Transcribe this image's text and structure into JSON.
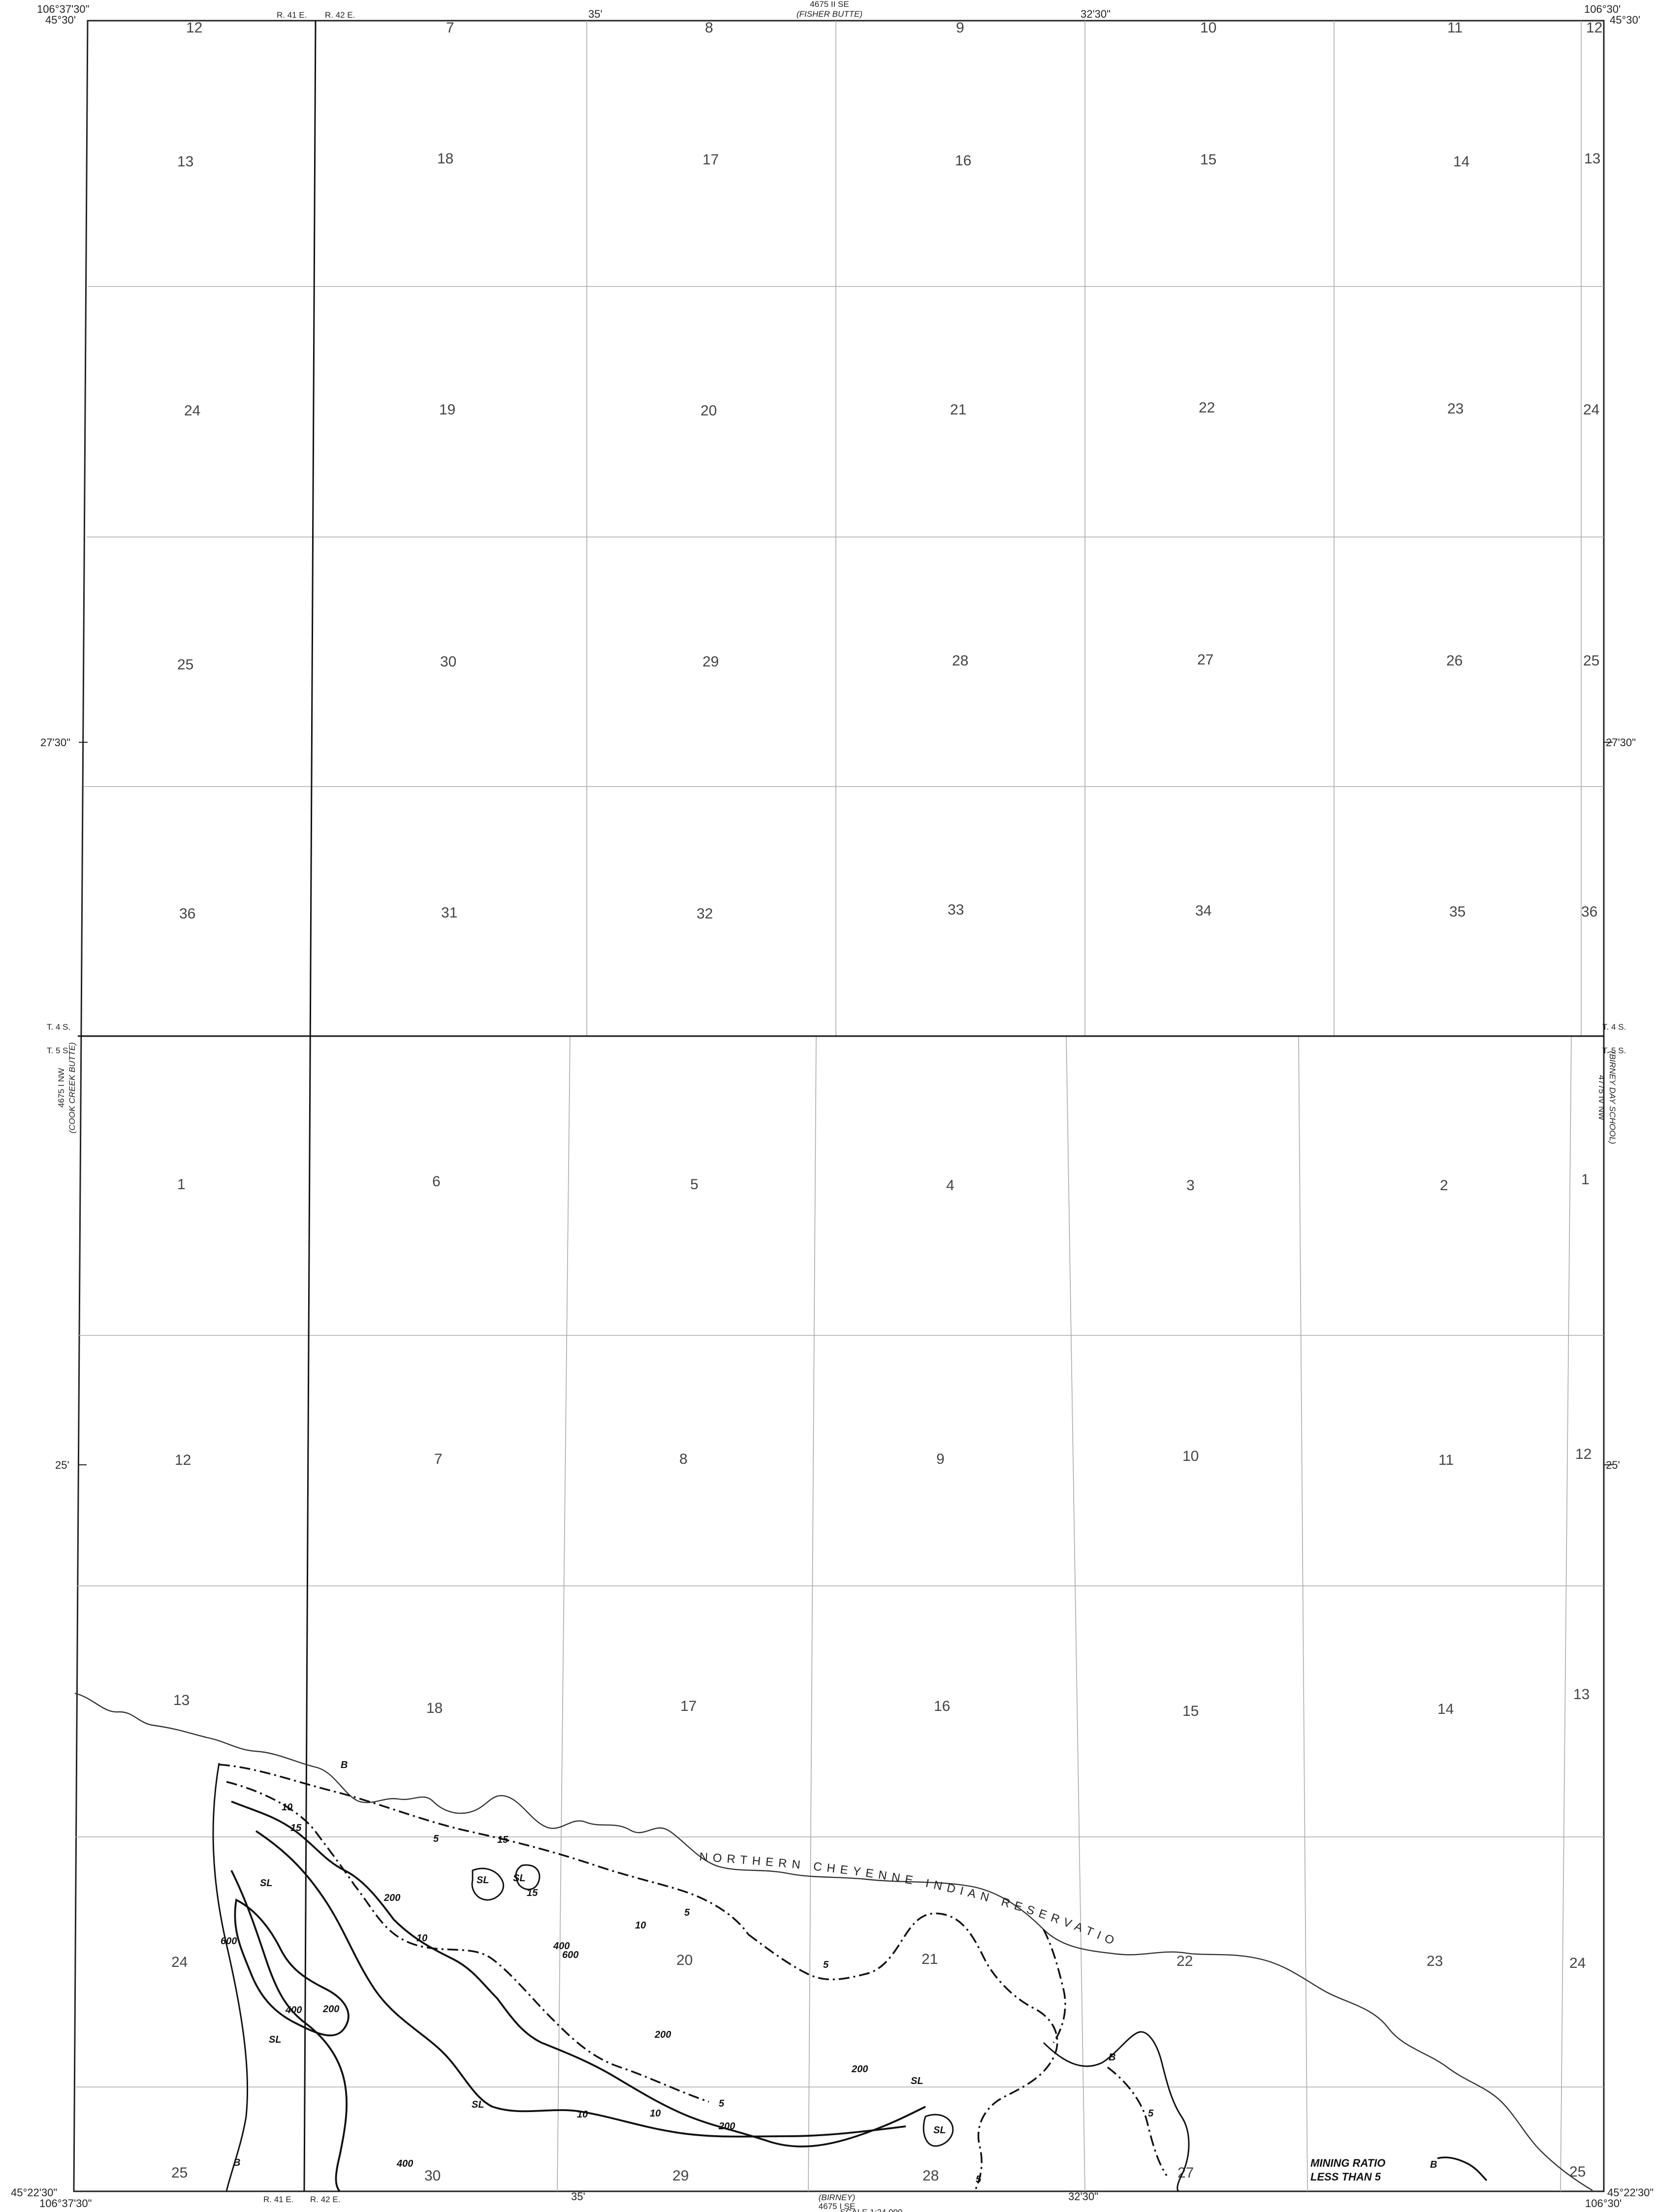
{
  "map": {
    "corners": {
      "nw_lon": "106°37'30\"",
      "nw_lat": "45°30'",
      "ne_lon": "106°30'",
      "ne_lat": "45°30'",
      "sw_lat": "45°22'30\"",
      "sw_lon": "106°37'30\"",
      "se_lat": "45°22'30\"",
      "se_lon": "106°30'"
    },
    "top_ticks": {
      "t35": "35'",
      "t32": "32'30\""
    },
    "bottom_ticks": {
      "t35": "35'",
      "t32": "32'30\""
    },
    "side_ticks": {
      "lat_2730_left": "27'30\"",
      "lat_2730_right": "27'30\"",
      "lat_25_left": "25'",
      "lat_25_right": "25'"
    },
    "ranges": {
      "top_r41": "R. 41 E.",
      "top_r42": "R. 42 E.",
      "bottom_r41": "R. 41 E.",
      "bottom_r42": "R. 42 E."
    },
    "townships": {
      "t4s_left": "T. 4 S.",
      "t5s_left": "T. 5 S.",
      "t4s_right": "T. 4 S.",
      "t5s_right": "T. 5 S."
    },
    "adjacent_quads": {
      "north_code": "4675 II SE",
      "north_name": "(FISHER BUTTE)",
      "west_code": "4675 I NW",
      "west_name": "(COOK CREEK BUTTE)",
      "east_code": "4775 IV NW",
      "east_name": "(BIRNEY DAY SCHOOL)",
      "south_code": "4675 I SE",
      "south_name": "(BIRNEY)"
    },
    "sections": [
      {
        "n": "12"
      },
      {
        "n": "7"
      },
      {
        "n": "8"
      },
      {
        "n": "9"
      },
      {
        "n": "10"
      },
      {
        "n": "11"
      },
      {
        "n": "12"
      },
      {
        "n": "13"
      },
      {
        "n": "18"
      },
      {
        "n": "17"
      },
      {
        "n": "16"
      },
      {
        "n": "15"
      },
      {
        "n": "14"
      },
      {
        "n": "13"
      },
      {
        "n": "24"
      },
      {
        "n": "19"
      },
      {
        "n": "20"
      },
      {
        "n": "21"
      },
      {
        "n": "22"
      },
      {
        "n": "23"
      },
      {
        "n": "24"
      },
      {
        "n": "25"
      },
      {
        "n": "30"
      },
      {
        "n": "29"
      },
      {
        "n": "28"
      },
      {
        "n": "27"
      },
      {
        "n": "26"
      },
      {
        "n": "25"
      },
      {
        "n": "36"
      },
      {
        "n": "31"
      },
      {
        "n": "32"
      },
      {
        "n": "33"
      },
      {
        "n": "34"
      },
      {
        "n": "35"
      },
      {
        "n": "36"
      },
      {
        "n": "1"
      },
      {
        "n": "6"
      },
      {
        "n": "5"
      },
      {
        "n": "4"
      },
      {
        "n": "3"
      },
      {
        "n": "2"
      },
      {
        "n": "1"
      },
      {
        "n": "12"
      },
      {
        "n": "7"
      },
      {
        "n": "8"
      },
      {
        "n": "9"
      },
      {
        "n": "10"
      },
      {
        "n": "11"
      },
      {
        "n": "12"
      },
      {
        "n": "13"
      },
      {
        "n": "18"
      },
      {
        "n": "17"
      },
      {
        "n": "16"
      },
      {
        "n": "15"
      },
      {
        "n": "14"
      },
      {
        "n": "13"
      },
      {
        "n": "24"
      },
      {
        "n": "20"
      },
      {
        "n": "21"
      },
      {
        "n": "22"
      },
      {
        "n": "23"
      },
      {
        "n": "24"
      },
      {
        "n": "25"
      },
      {
        "n": "30"
      },
      {
        "n": "29"
      },
      {
        "n": "28"
      },
      {
        "n": "27"
      },
      {
        "n": "25"
      }
    ],
    "reservation_label": "NORTHERN CHEYENNE INDIAN RESERVATION",
    "contour_labels": [
      "B",
      "10",
      "15",
      "SL",
      "5",
      "15",
      "SL",
      "15",
      "200",
      "SL",
      "10",
      "5",
      "600",
      "400",
      "600",
      "400",
      "200",
      "SL",
      "10",
      "200",
      "SL",
      "10",
      "5",
      "SL",
      "200",
      "5",
      "400",
      "B",
      "5",
      "B",
      "SL",
      "5",
      "200",
      "10"
    ],
    "legend": {
      "line1": "MINING RATIO",
      "line2": "LESS THAN 5",
      "marker": "B"
    },
    "partial_texts": {
      "bottom_scale": "SCALE 1:24 000"
    }
  }
}
